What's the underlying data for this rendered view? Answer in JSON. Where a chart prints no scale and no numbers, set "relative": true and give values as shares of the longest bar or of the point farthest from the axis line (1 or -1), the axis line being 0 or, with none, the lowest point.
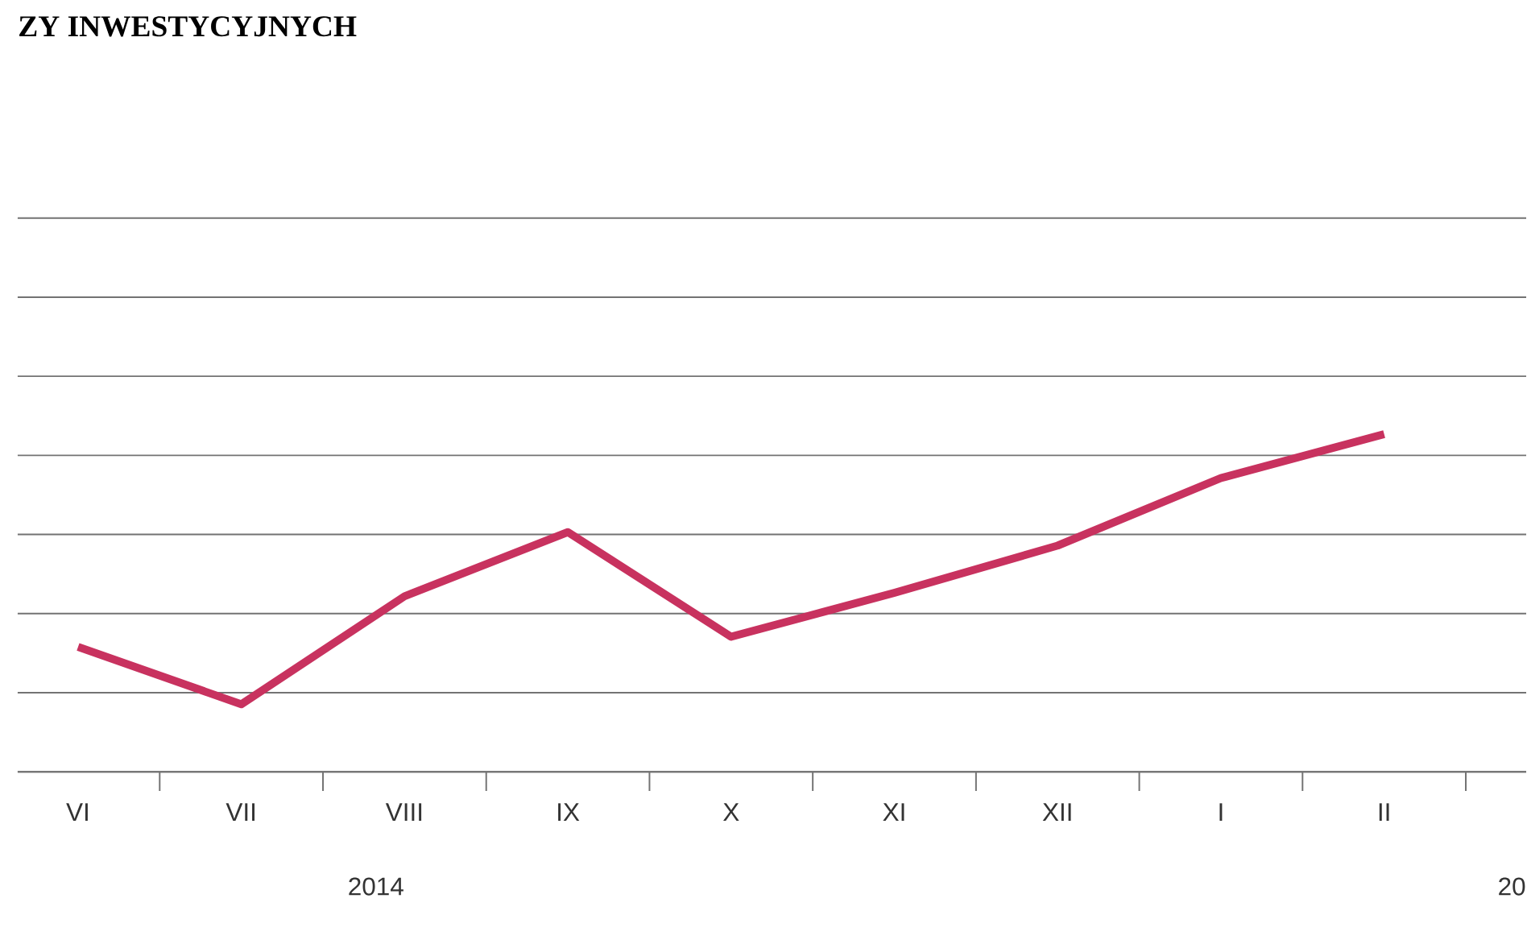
{
  "chart_data": {
    "type": "line",
    "title": "ZY INWESTYCYJNYCH",
    "categories": [
      "VI",
      "VII",
      "VIII",
      "IX",
      "X",
      "XI",
      "XII",
      "I",
      "II"
    ],
    "series": [
      {
        "color": "#c8325f",
        "values": [
          0.37,
          0.2,
          0.52,
          0.71,
          0.4,
          0.53,
          0.67,
          0.87,
          1.0
        ]
      }
    ],
    "relative": true,
    "grid": "y",
    "marker": "none",
    "line_style": "solid",
    "annotations": [
      "2014",
      "20"
    ]
  }
}
